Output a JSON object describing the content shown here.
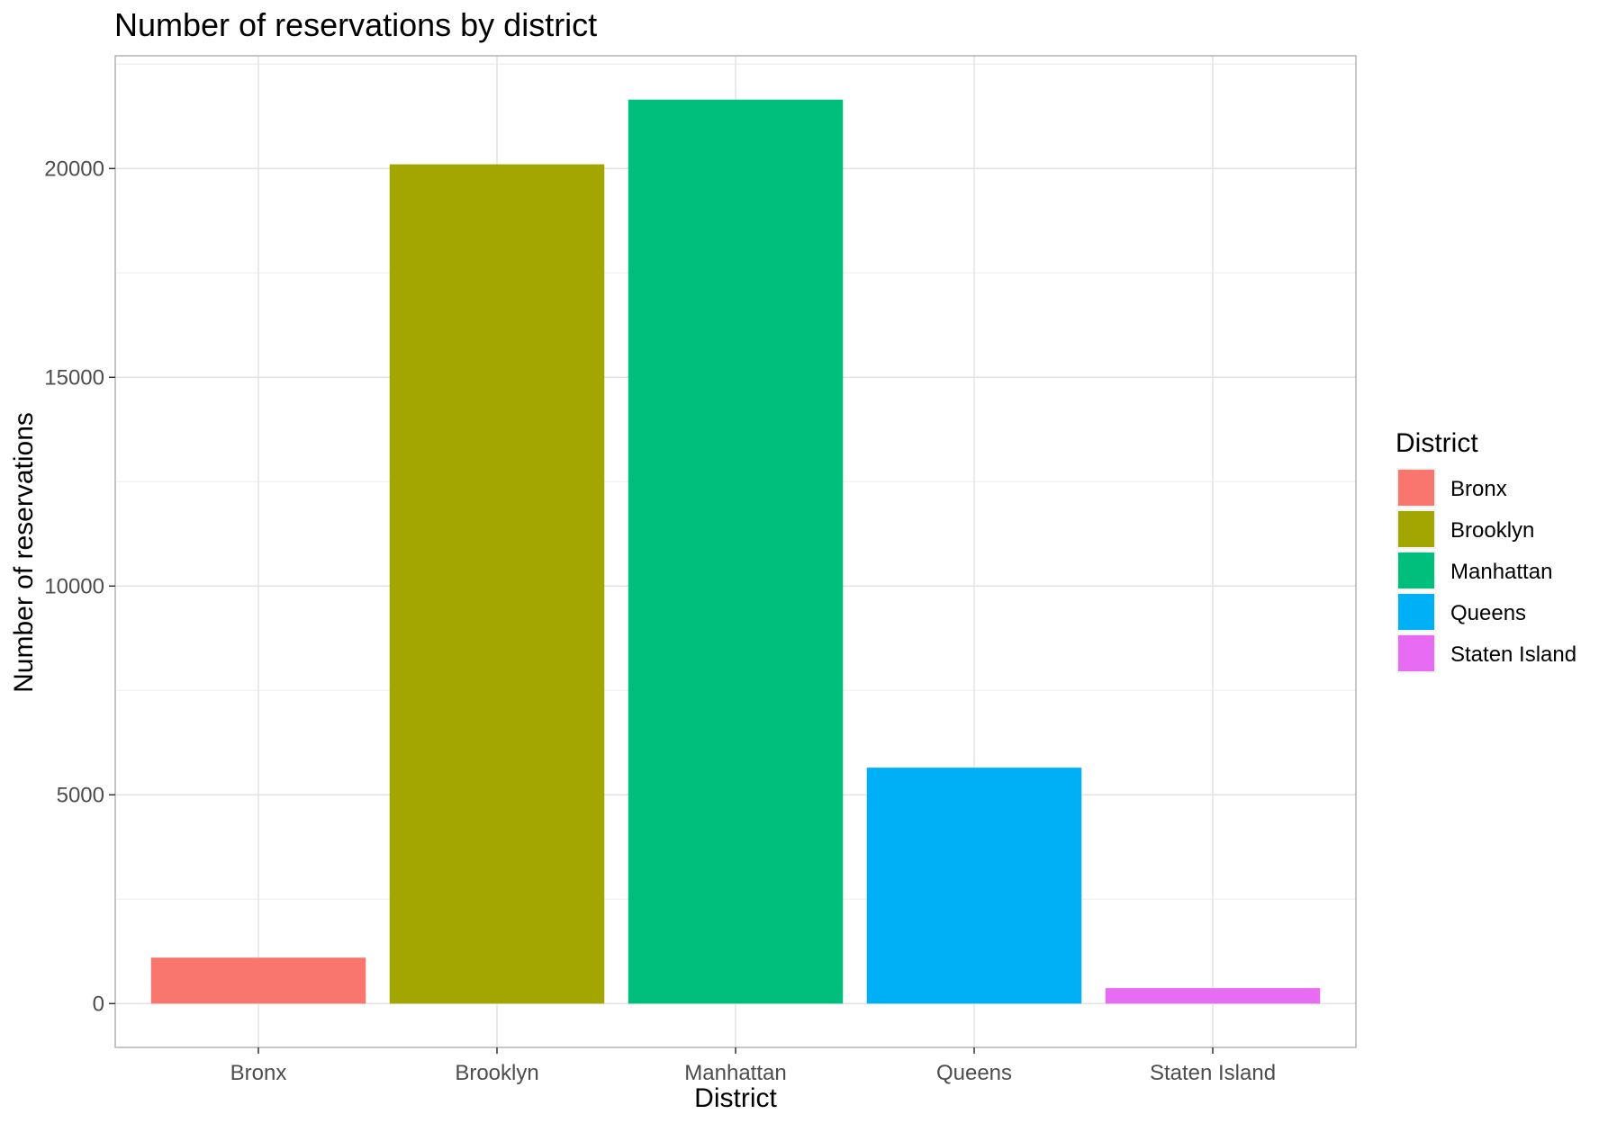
{
  "chart_data": {
    "type": "bar",
    "title": "Number of reservations by district",
    "xlabel": "District",
    "ylabel": "Number of reservations",
    "categories": [
      "Bronx",
      "Brooklyn",
      "Manhattan",
      "Queens",
      "Staten Island"
    ],
    "values": [
      1100,
      20100,
      21650,
      5650,
      370
    ],
    "colors": [
      "#F8766D",
      "#A3A500",
      "#00BF7D",
      "#00B0F6",
      "#E76BF3"
    ],
    "ylim": [
      -1050,
      22700
    ],
    "yticks": [
      0,
      5000,
      10000,
      15000,
      20000
    ],
    "grid": true,
    "legend": {
      "title": "District",
      "position": "right",
      "entries": [
        "Bronx",
        "Brooklyn",
        "Manhattan",
        "Queens",
        "Staten Island"
      ]
    }
  }
}
